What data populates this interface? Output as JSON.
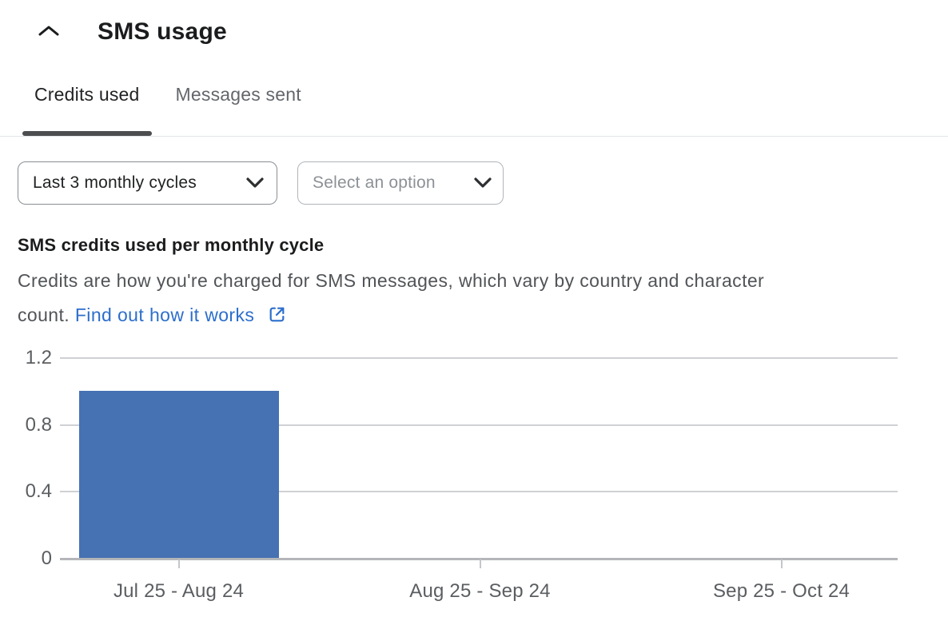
{
  "header": {
    "title": "SMS usage"
  },
  "tabs": [
    {
      "label": "Credits used",
      "active": true
    },
    {
      "label": "Messages sent",
      "active": false
    }
  ],
  "filters": {
    "period_dropdown": {
      "value": "Last 3 monthly cycles"
    },
    "option_dropdown": {
      "placeholder": "Select an option"
    }
  },
  "section": {
    "heading": "SMS credits used per monthly cycle",
    "description_line1": "Credits are how you're charged for SMS messages, which vary by country and character",
    "description_line2_prefix": "count. ",
    "link_label": "Find out how it works"
  },
  "colors": {
    "link": "#2c6ecb",
    "bar": "#4671b2",
    "active_tab_underline": "#4b4d4f"
  },
  "chart_data": {
    "type": "bar",
    "title": "SMS credits used per monthly cycle",
    "categories": [
      "Jul 25 - Aug 24",
      "Aug 25 - Sep 24",
      "Sep 25 - Oct 24"
    ],
    "values": [
      1,
      0,
      0
    ],
    "xlabel": "",
    "ylabel": "",
    "ylim": [
      0,
      1.2
    ],
    "yticks": [
      0,
      0.4,
      0.8,
      1.2
    ],
    "ytick_labels": [
      "0",
      "0.4",
      "0.8",
      "1.2"
    ],
    "grid": true,
    "legend": "none",
    "bar_color": "#4671b2"
  }
}
